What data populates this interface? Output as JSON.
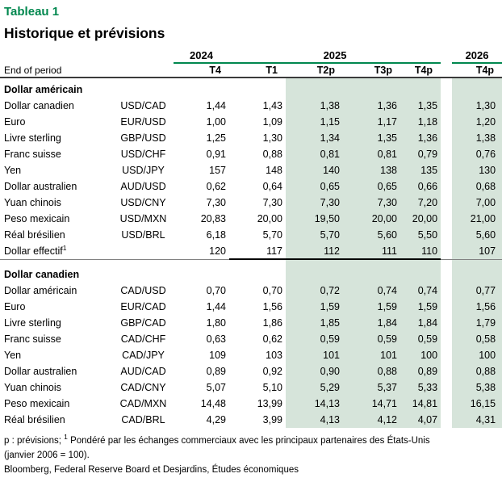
{
  "colors": {
    "accent_green": "#00874e",
    "shade_green": "#d6e4da",
    "rule_dark": "#3b3b3b",
    "rule_gray": "#808080"
  },
  "header": {
    "table_label": "Tableau 1",
    "title": "Historique et prévisions"
  },
  "columns": {
    "end_of_period": "End of period",
    "year_groups": [
      {
        "year": "2024",
        "quarters": [
          "T4"
        ]
      },
      {
        "year": "2025",
        "quarters": [
          "T1",
          "T2p",
          "T3p",
          "T4p"
        ]
      },
      {
        "year": "2026",
        "quarters": [
          "T4p"
        ]
      }
    ]
  },
  "sections": [
    {
      "title": "Dollar américain",
      "rows": [
        {
          "label": "Dollar canadien",
          "pair": "USD/CAD",
          "values": [
            "1,44",
            "1,43",
            "1,38",
            "1,36",
            "1,35",
            "1,30"
          ]
        },
        {
          "label": "Euro",
          "pair": "EUR/USD",
          "values": [
            "1,00",
            "1,09",
            "1,15",
            "1,17",
            "1,18",
            "1,20"
          ]
        },
        {
          "label": "Livre sterling",
          "pair": "GBP/USD",
          "values": [
            "1,25",
            "1,30",
            "1,34",
            "1,35",
            "1,36",
            "1,38"
          ]
        },
        {
          "label": "Franc suisse",
          "pair": "USD/CHF",
          "values": [
            "0,91",
            "0,88",
            "0,81",
            "0,81",
            "0,79",
            "0,76"
          ]
        },
        {
          "label": "Yen",
          "pair": "USD/JPY",
          "values": [
            "157",
            "148",
            "140",
            "138",
            "135",
            "130"
          ]
        },
        {
          "label": "Dollar australien",
          "pair": "AUD/USD",
          "values": [
            "0,62",
            "0,64",
            "0,65",
            "0,65",
            "0,66",
            "0,68"
          ]
        },
        {
          "label": "Yuan chinois",
          "pair": "USD/CNY",
          "values": [
            "7,30",
            "7,30",
            "7,30",
            "7,30",
            "7,20",
            "7,00"
          ]
        },
        {
          "label": "Peso mexicain",
          "pair": "USD/MXN",
          "values": [
            "20,83",
            "20,00",
            "19,50",
            "20,00",
            "20,00",
            "21,00"
          ]
        },
        {
          "label": "Réal brésilien",
          "pair": "USD/BRL",
          "values": [
            "6,18",
            "5,70",
            "5,70",
            "5,60",
            "5,50",
            "5,60"
          ]
        },
        {
          "label": "Dollar effectif",
          "sup": "1",
          "pair": "",
          "values": [
            "120",
            "117",
            "112",
            "111",
            "110",
            "107"
          ],
          "underline": true
        }
      ]
    },
    {
      "title": "Dollar canadien",
      "rows": [
        {
          "label": "Dollar américain",
          "pair": "CAD/USD",
          "values": [
            "0,70",
            "0,70",
            "0,72",
            "0,74",
            "0,74",
            "0,77"
          ]
        },
        {
          "label": "Euro",
          "pair": "EUR/CAD",
          "values": [
            "1,44",
            "1,56",
            "1,59",
            "1,59",
            "1,59",
            "1,56"
          ]
        },
        {
          "label": "Livre sterling",
          "pair": "GBP/CAD",
          "values": [
            "1,80",
            "1,86",
            "1,85",
            "1,84",
            "1,84",
            "1,79"
          ]
        },
        {
          "label": "Franc suisse",
          "pair": "CAD/CHF",
          "values": [
            "0,63",
            "0,62",
            "0,59",
            "0,59",
            "0,59",
            "0,58"
          ]
        },
        {
          "label": "Yen",
          "pair": "CAD/JPY",
          "values": [
            "109",
            "103",
            "101",
            "101",
            "100",
            "100"
          ]
        },
        {
          "label": "Dollar australien",
          "pair": "AUD/CAD",
          "values": [
            "0,89",
            "0,92",
            "0,90",
            "0,88",
            "0,89",
            "0,88"
          ]
        },
        {
          "label": "Yuan chinois",
          "pair": "CAD/CNY",
          "values": [
            "5,07",
            "5,10",
            "5,29",
            "5,37",
            "5,33",
            "5,38"
          ]
        },
        {
          "label": "Peso mexicain",
          "pair": "CAD/MXN",
          "values": [
            "14,48",
            "13,99",
            "14,13",
            "14,71",
            "14,81",
            "16,15"
          ]
        },
        {
          "label": "Réal brésilien",
          "pair": "CAD/BRL",
          "values": [
            "4,29",
            "3,99",
            "4,13",
            "4,12",
            "4,07",
            "4,31"
          ]
        }
      ]
    }
  ],
  "footnotes": {
    "note_prefix": "p : prévisions; ",
    "note_sup": "1",
    "note_text": " Pondéré par les échanges commerciaux avec les principaux partenaires des États-Unis",
    "note_line2": "(janvier 2006 = 100).",
    "source": "Bloomberg, Federal Reserve Board et Desjardins, Études économiques"
  }
}
